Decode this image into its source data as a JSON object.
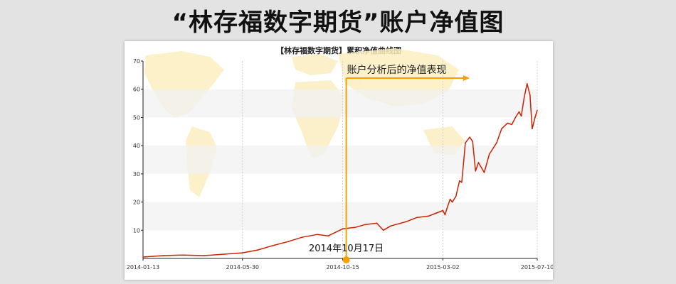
{
  "page": {
    "heading": "“林存福数字期货”账户净值图"
  },
  "chart_data": {
    "type": "line",
    "title": "【林存福数字期货】累积净值曲线图",
    "xlabel": "",
    "ylabel": "",
    "ylim": [
      0,
      70
    ],
    "y_ticks": [
      "10",
      "20",
      "30",
      "40",
      "50",
      "60",
      "70"
    ],
    "x_tick_labels": [
      "2014-01-13",
      "2014-05-30",
      "2014-10-15",
      "2015-03-02",
      "2015-07-10"
    ],
    "x_ticks": [
      "2014-01-13",
      "2014-05-30",
      "2014-10-15",
      "2015-03-02",
      "2015-07-10"
    ],
    "grid": true,
    "line_color": "#cc2200",
    "annotation_color": "#f5a000",
    "series": [
      {
        "x": [
          "2014-01-13",
          "2014-02-10",
          "2014-03-10",
          "2014-04-07",
          "2014-05-05",
          "2014-05-30",
          "2014-06-20",
          "2014-07-10",
          "2014-08-01",
          "2014-08-20",
          "2014-09-10",
          "2014-09-25",
          "2014-10-15",
          "2014-11-01",
          "2014-11-15",
          "2014-12-01",
          "2014-12-10",
          "2014-12-20",
          "2015-01-10",
          "2015-01-25",
          "2015-02-10",
          "2015-02-20",
          "2015-03-02",
          "2015-03-05",
          "2015-03-08",
          "2015-03-12",
          "2015-03-15",
          "2015-03-20",
          "2015-03-25",
          "2015-03-28",
          "2015-04-02",
          "2015-04-08",
          "2015-04-12",
          "2015-04-16",
          "2015-04-20",
          "2015-04-28",
          "2015-05-05",
          "2015-05-15",
          "2015-05-22",
          "2015-05-30",
          "2015-06-05",
          "2015-06-10",
          "2015-06-15",
          "2015-06-18",
          "2015-06-22",
          "2015-06-26",
          "2015-06-30",
          "2015-07-03",
          "2015-07-07",
          "2015-07-10"
        ],
        "values": [
          0.5,
          1.0,
          1.2,
          1.0,
          1.5,
          2.0,
          3.0,
          4.5,
          6.0,
          7.5,
          8.5,
          8.0,
          10.5,
          11.0,
          12.0,
          12.5,
          10.0,
          11.5,
          13.0,
          14.5,
          15.0,
          16.0,
          17.0,
          15.5,
          18.0,
          21.0,
          20.0,
          22.0,
          27.5,
          27.0,
          41.0,
          43.0,
          41.5,
          31.0,
          34.0,
          30.5,
          37.0,
          41.0,
          46.0,
          48.0,
          47.5,
          50.0,
          52.0,
          50.5,
          57.0,
          62.0,
          58.0,
          46.0,
          50.0,
          52.5
        ]
      }
    ],
    "annotation": {
      "date": "2014-10-15",
      "label": "账户分析后的净值表现",
      "date_label": "2014年10月17日"
    },
    "background_map": "world-map"
  }
}
